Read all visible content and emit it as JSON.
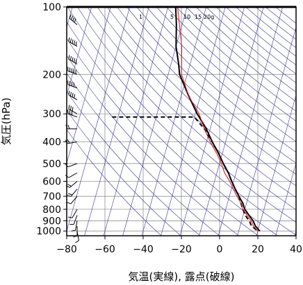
{
  "chart_data": {
    "type": "line",
    "title": "",
    "xlabel": "気温(実線), 露点(破線)",
    "ylabel": "気圧(hPa)",
    "xlim": [
      -80,
      40
    ],
    "ylim_hpa": [
      1050,
      100
    ],
    "y_scale": "log",
    "x_ticks": [
      "−80",
      "−60",
      "−40",
      "−20",
      "0",
      "20",
      "40"
    ],
    "x_tick_values": [
      -80,
      -60,
      -40,
      -20,
      0,
      20,
      40
    ],
    "y_ticks": [
      "100",
      "200",
      "300",
      "400",
      "500",
      "600",
      "700",
      "800",
      "900",
      "1000"
    ],
    "y_tick_values": [
      100,
      200,
      300,
      400,
      500,
      600,
      700,
      800,
      900,
      1000
    ],
    "skew_deg_per_decade": 33,
    "mixing_ratio_labels": [
      "1",
      "5",
      "10",
      "15",
      "20g"
    ],
    "series": [
      {
        "style": "solid",
        "color": "#000000",
        "points": [
          [
            100,
            -56
          ],
          [
            120,
            -53
          ],
          [
            150,
            -50
          ],
          [
            180,
            -46
          ],
          [
            200,
            -44
          ],
          [
            250,
            -36
          ],
          [
            300,
            -29
          ],
          [
            350,
            -22
          ],
          [
            400,
            -17
          ],
          [
            450,
            -12
          ],
          [
            500,
            -8
          ],
          [
            550,
            -4
          ],
          [
            600,
            -1
          ],
          [
            650,
            2
          ],
          [
            700,
            5
          ],
          [
            750,
            8
          ],
          [
            800,
            10
          ],
          [
            850,
            13
          ],
          [
            900,
            16
          ],
          [
            950,
            18
          ],
          [
            1000,
            21
          ]
        ]
      },
      {
        "style": "dashed",
        "color": "#000000",
        "points": [
          [
            310,
            -73
          ],
          [
            310,
            -30
          ],
          [
            350,
            -23
          ],
          [
            400,
            -17
          ],
          [
            450,
            -12
          ],
          [
            500,
            -8
          ],
          [
            550,
            -4
          ],
          [
            600,
            -1
          ],
          [
            650,
            2
          ],
          [
            700,
            5
          ],
          [
            750,
            7
          ],
          [
            800,
            9
          ],
          [
            850,
            11
          ],
          [
            900,
            14
          ],
          [
            950,
            16
          ],
          [
            1000,
            20
          ]
        ]
      },
      {
        "style": "solid",
        "color": "#ff0000",
        "points": [
          [
            100,
            -55
          ],
          [
            150,
            -47
          ],
          [
            200,
            -43
          ],
          [
            250,
            -36
          ],
          [
            300,
            -28
          ],
          [
            350,
            -23
          ],
          [
            400,
            -18
          ],
          [
            450,
            -13
          ],
          [
            500,
            -9
          ],
          [
            550,
            -6
          ],
          [
            600,
            -2
          ],
          [
            650,
            1
          ],
          [
            700,
            4
          ],
          [
            750,
            7
          ],
          [
            800,
            9
          ],
          [
            850,
            12
          ],
          [
            900,
            15
          ],
          [
            950,
            17
          ],
          [
            1000,
            20
          ]
        ]
      }
    ],
    "wind_barbs": [
      {
        "p": 120,
        "spd": 40,
        "dir": 310
      },
      {
        "p": 150,
        "spd": 55,
        "dir": 300
      },
      {
        "p": 180,
        "spd": 50,
        "dir": 300
      },
      {
        "p": 200,
        "spd": 45,
        "dir": 290
      },
      {
        "p": 230,
        "spd": 40,
        "dir": 290
      },
      {
        "p": 260,
        "spd": 35,
        "dir": 300
      },
      {
        "p": 300,
        "spd": 30,
        "dir": 300
      },
      {
        "p": 310,
        "spd": 25,
        "dir": 290
      },
      {
        "p": 350,
        "spd": 20,
        "dir": 270
      },
      {
        "p": 400,
        "spd": 15,
        "dir": 260
      },
      {
        "p": 500,
        "spd": 10,
        "dir": 250
      },
      {
        "p": 550,
        "spd": 10,
        "dir": 240
      },
      {
        "p": 600,
        "spd": 15,
        "dir": 230
      },
      {
        "p": 650,
        "spd": 15,
        "dir": 220
      },
      {
        "p": 700,
        "spd": 10,
        "dir": 220
      },
      {
        "p": 800,
        "spd": 10,
        "dir": 210
      },
      {
        "p": 850,
        "spd": 10,
        "dir": 200
      },
      {
        "p": 900,
        "spd": 5,
        "dir": 190
      },
      {
        "p": 950,
        "spd": 5,
        "dir": 180
      },
      {
        "p": 1000,
        "spd": 5,
        "dir": 170
      }
    ]
  }
}
